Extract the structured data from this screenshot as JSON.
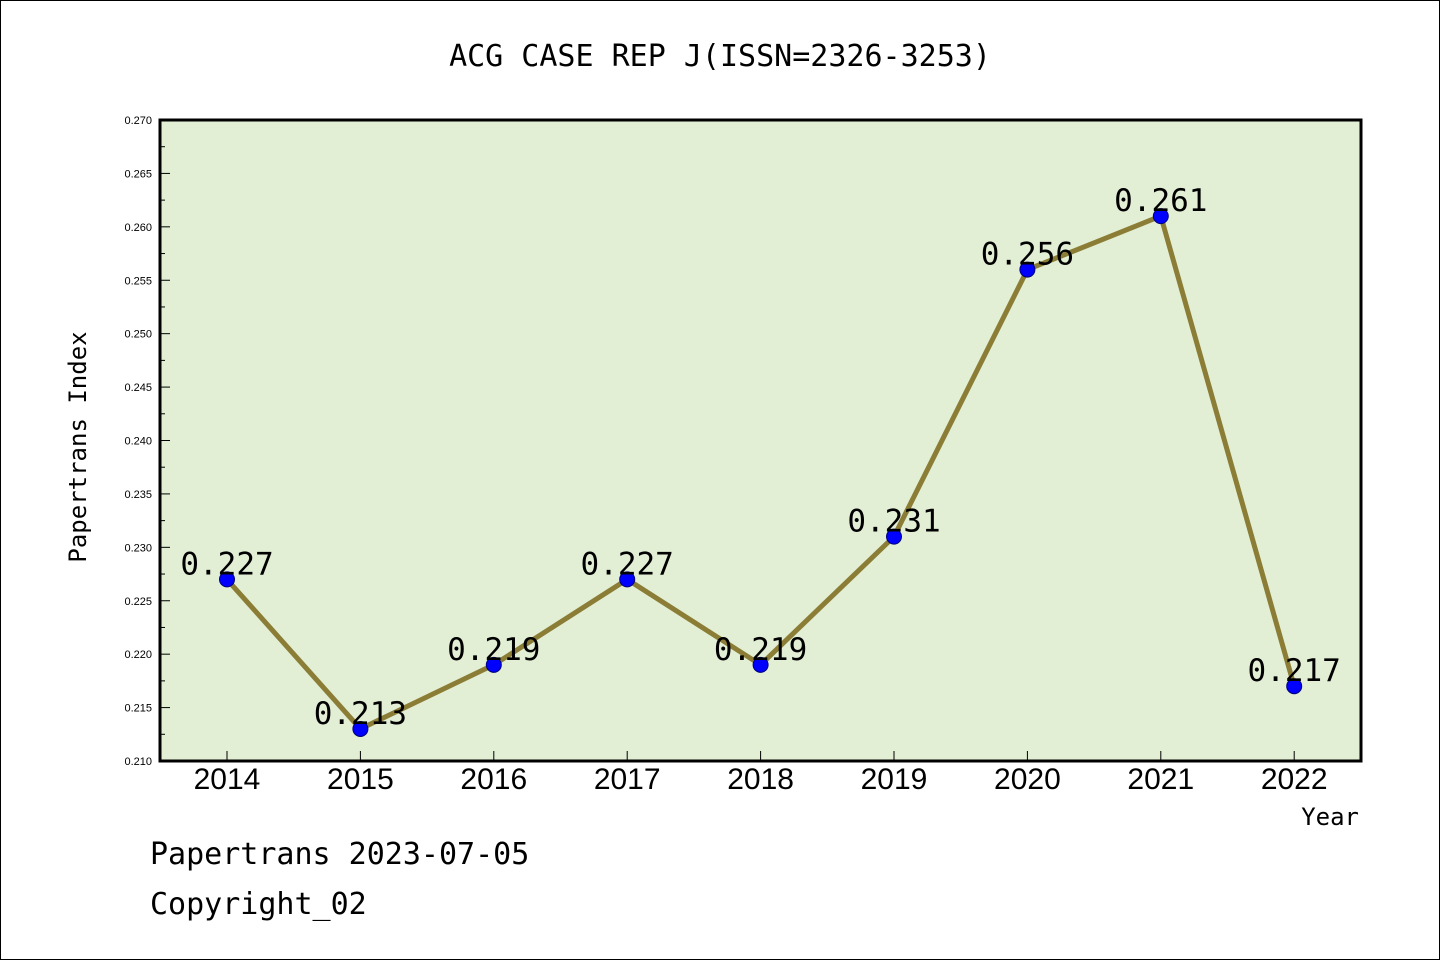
{
  "chart_data": {
    "type": "line",
    "title": "ACG CASE REP J(ISSN=2326-3253)",
    "xlabel": "Year",
    "ylabel": "Papertrans Index",
    "categories": [
      "2014",
      "2015",
      "2016",
      "2017",
      "2018",
      "2019",
      "2020",
      "2021",
      "2022"
    ],
    "series": [
      {
        "values": [
          0.227,
          0.213,
          0.219,
          0.227,
          0.219,
          0.231,
          0.256,
          0.261,
          0.217
        ],
        "data_labels": [
          "0.227",
          "0.213",
          "0.219",
          "0.227",
          "0.219",
          "0.231",
          "0.256",
          "0.261",
          "0.217"
        ],
        "line_color": "#8b7d35",
        "marker_color": "#0000ff"
      }
    ],
    "ylim": [
      0.21,
      0.27
    ],
    "yticks": [
      "0.210",
      "0.215",
      "0.220",
      "0.225",
      "0.230",
      "0.235",
      "0.240",
      "0.245",
      "0.250",
      "0.255",
      "0.260",
      "0.265",
      "0.270"
    ],
    "plot_background": "#e2efd5",
    "grid": false,
    "legend": "none"
  },
  "footer": {
    "line1": "Papertrans 2023-07-05",
    "line2": "Copyright_02"
  }
}
